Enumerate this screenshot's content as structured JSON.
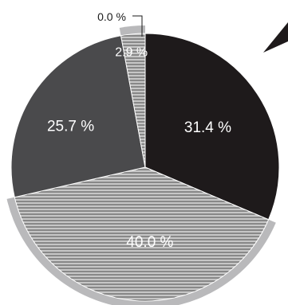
{
  "chart_data": {
    "type": "pie",
    "title": "",
    "slices": [
      {
        "label": "31.4 %",
        "value": 31.4,
        "color": "#1e1a1b",
        "pattern": "solid"
      },
      {
        "label": "40.0 %",
        "value": 40.0,
        "color": "#aeaeae",
        "pattern": "horizontal-lines"
      },
      {
        "label": "25.7 %",
        "value": 25.7,
        "color": "#4a4a4c",
        "pattern": "solid"
      },
      {
        "label": "2.9 %",
        "value": 2.9,
        "color": "#b0b0b0",
        "pattern": "horizontal-lines"
      },
      {
        "label": "0.0 %",
        "value": 0.0,
        "color": "#ffffff",
        "pattern": "solid"
      }
    ],
    "highlight_ring_color": "#b9b9bb"
  }
}
